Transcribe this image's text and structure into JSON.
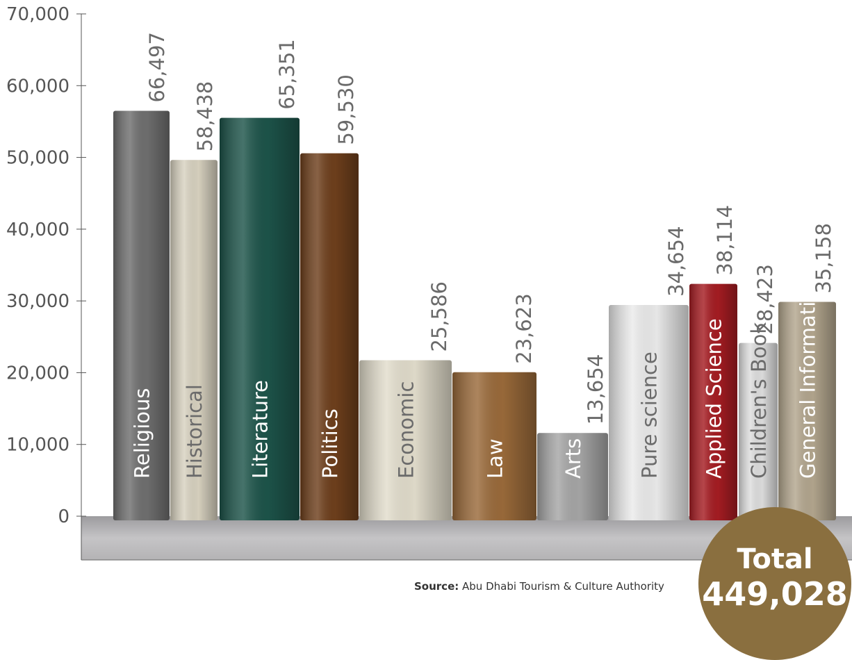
{
  "chart_data": {
    "type": "bar",
    "categories": [
      "Religious",
      "Historical",
      "Literature",
      "Politics",
      "Economic",
      "Law",
      "Arts",
      "Pure science",
      "Applied Science",
      "Children's Book",
      "General Information"
    ],
    "values": [
      66497,
      58438,
      65351,
      59530,
      25586,
      23623,
      13654,
      34654,
      38114,
      28423,
      35158
    ],
    "value_labels": [
      "66,497",
      "58,438",
      "65,351",
      "59,530",
      "25,586",
      "23,623",
      "13,654",
      "34,654",
      "38,114",
      "28,423",
      "35,158"
    ],
    "bar_colors": [
      "#6f6f6f",
      "#d8d2c0",
      "#1d544a",
      "#6e3f1c",
      "#e2ddcc",
      "#9a6a3a",
      "#a6a6a6",
      "#ebebeb",
      "#a51c22",
      "#dedede",
      "#b3a68e"
    ],
    "label_colors": [
      "#ffffff",
      "#6b6b6b",
      "#ffffff",
      "#ffffff",
      "#6b6b6b",
      "#ffffff",
      "#ffffff",
      "#6b6b6b",
      "#ffffff",
      "#6b6b6b",
      "#ffffff"
    ],
    "yticks": [
      "70,000",
      "60,000",
      "50,000",
      "40,000",
      "30,000",
      "20,000",
      "10,000",
      "0"
    ],
    "ylim": [
      0,
      70000
    ],
    "grid": false,
    "legend": "none",
    "title": "",
    "xlabel": "",
    "ylabel": ""
  },
  "source": {
    "label": "Source:",
    "text": " Abu Dhabi Tourism & Culture Authority"
  },
  "total": {
    "label": "Total",
    "value": "449,028"
  },
  "colors": {
    "total_badge": "#8a6f3f",
    "shelf": "#b7b6b8",
    "axis": "#555555"
  }
}
